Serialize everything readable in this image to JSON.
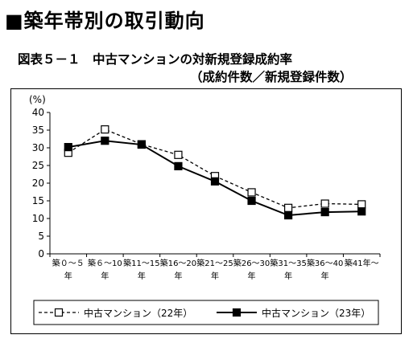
{
  "heading": "■築年帯別の取引動向",
  "figure": {
    "title": "図表５－１　中古マンションの対新規登録成約率",
    "subtitle": "（成約件数／新規登録件数）"
  },
  "chart_data": {
    "type": "line",
    "title": "中古マンションの対新規登録成約率",
    "unit_label": "(%)",
    "ylim": [
      0,
      40
    ],
    "yticks": [
      0,
      5,
      10,
      15,
      20,
      25,
      30,
      35,
      40
    ],
    "grid": false,
    "legend_position": "bottom",
    "categories": [
      [
        "築０～５",
        "年"
      ],
      [
        "築６～10",
        "年"
      ],
      [
        "築11～15",
        "年"
      ],
      [
        "築16～20",
        "年"
      ],
      [
        "築21～25",
        "年"
      ],
      [
        "築26～30",
        "年"
      ],
      [
        "築31～35",
        "年"
      ],
      [
        "築36～40",
        "年"
      ],
      [
        "築41年～",
        ""
      ]
    ],
    "series": [
      {
        "name": "中古マンション（22年）",
        "style": "dashed",
        "marker": "open-square",
        "color": "#000000",
        "values": [
          28.6,
          35.2,
          31.0,
          28.0,
          22.0,
          17.4,
          13.0,
          14.2,
          14.0
        ]
      },
      {
        "name": "中古マンション（23年）",
        "style": "solid",
        "marker": "filled-square",
        "color": "#000000",
        "values": [
          30.2,
          32.0,
          30.9,
          24.8,
          20.5,
          15.0,
          10.9,
          11.8,
          12.0
        ]
      }
    ]
  }
}
